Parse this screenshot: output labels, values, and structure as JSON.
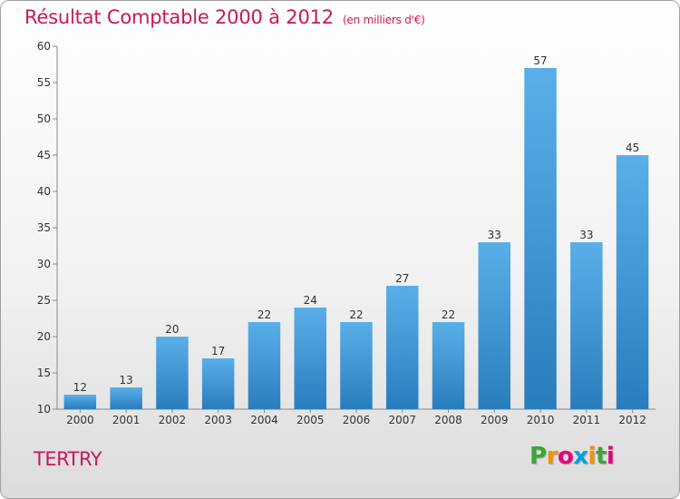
{
  "chart_data": {
    "type": "bar",
    "title": "Résultat Comptable 2000 à 2012",
    "subtitle": "(en milliers d'€)",
    "categories": [
      "2000",
      "2001",
      "2002",
      "2003",
      "2004",
      "2005",
      "2006",
      "2007",
      "2008",
      "2009",
      "2010",
      "2011",
      "2012"
    ],
    "values": [
      12,
      13,
      20,
      17,
      22,
      24,
      22,
      27,
      22,
      33,
      57,
      33,
      45
    ],
    "ylim": [
      10,
      60
    ],
    "yticks": [
      10,
      15,
      20,
      25,
      30,
      35,
      40,
      45,
      50,
      55,
      60
    ],
    "xlabel": "",
    "ylabel": "",
    "grid": false,
    "colors": {
      "bar_top": "#5aafe8",
      "bar_bottom": "#2a7dbd",
      "title": "#c8185a"
    }
  },
  "footer": {
    "commune": "TERTRY"
  },
  "logo": {
    "letters": [
      "P",
      "r",
      "o",
      "x",
      "i",
      "t",
      "i"
    ],
    "colors": [
      "#3fa535",
      "#f39200",
      "#e6007e",
      "#00a0e3",
      "#f39200",
      "#3fa535",
      "#e6007e"
    ]
  }
}
